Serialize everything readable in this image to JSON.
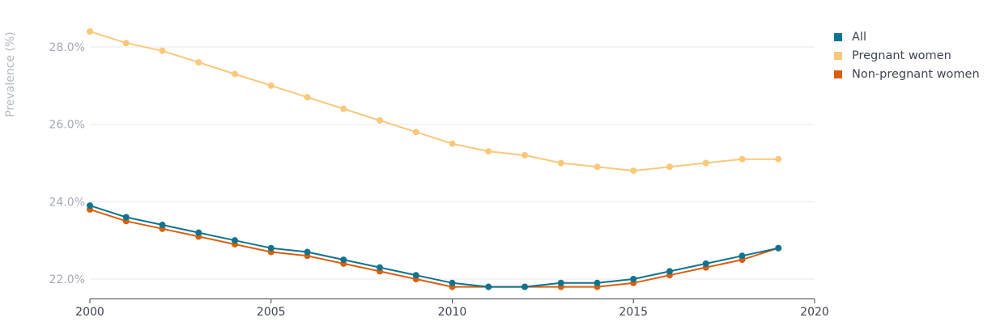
{
  "chart_data": {
    "type": "line",
    "ylabel": "Prevalence (%)",
    "xlabel": "",
    "xlim": [
      2000,
      2020
    ],
    "ylim": [
      21.5,
      28.8
    ],
    "x_ticks": [
      "2000",
      "2005",
      "2010",
      "2015",
      "2020"
    ],
    "y_ticks": [
      "22.0%",
      "24.0%",
      "26.0%",
      "28.0%"
    ],
    "grid": "horizontal",
    "legend_position": "top-right",
    "x": [
      2000,
      2001,
      2002,
      2003,
      2004,
      2005,
      2006,
      2007,
      2008,
      2009,
      2010,
      2011,
      2012,
      2013,
      2014,
      2015,
      2016,
      2017,
      2018,
      2019
    ],
    "series": [
      {
        "name": "Pregnant women",
        "color": "#f9c87a",
        "values": [
          28.4,
          28.1,
          27.9,
          27.6,
          27.3,
          27.0,
          26.7,
          26.4,
          26.1,
          25.8,
          25.5,
          25.3,
          25.2,
          25.0,
          24.9,
          24.8,
          24.9,
          25.0,
          25.1,
          25.1
        ]
      },
      {
        "name": "Non-pregnant women",
        "color": "#d95f0e",
        "values": [
          23.8,
          23.5,
          23.3,
          23.1,
          22.9,
          22.7,
          22.6,
          22.4,
          22.2,
          22.0,
          21.8,
          21.8,
          21.8,
          21.8,
          21.8,
          21.9,
          22.1,
          22.3,
          22.5,
          22.8
        ]
      },
      {
        "name": "All",
        "color": "#0f7490",
        "values": [
          23.9,
          23.6,
          23.4,
          23.2,
          23.0,
          22.8,
          22.7,
          22.5,
          22.3,
          22.1,
          21.9,
          21.8,
          21.8,
          21.9,
          21.9,
          22.0,
          22.2,
          22.4,
          22.6,
          22.8
        ]
      }
    ],
    "legend_order": [
      "All",
      "Pregnant women",
      "Non-pregnant women"
    ]
  }
}
